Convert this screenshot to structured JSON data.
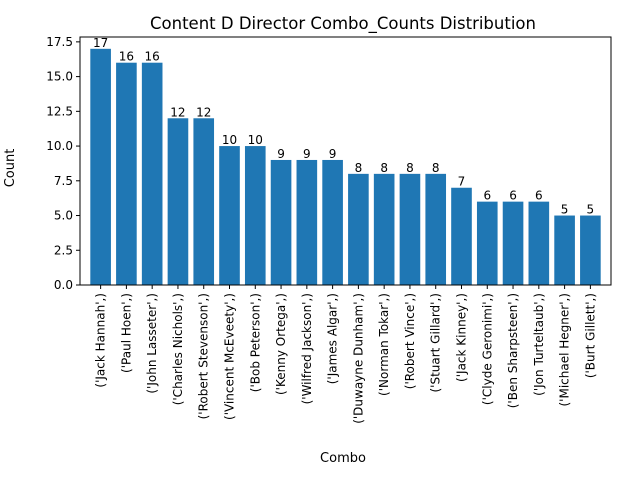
{
  "chart_data": {
    "type": "bar",
    "title": "Content D Director Combo_Counts Distribution",
    "xlabel": "Combo",
    "ylabel": "Count",
    "ylim": [
      0,
      17.85
    ],
    "yticks": [
      "0.0",
      "2.5",
      "5.0",
      "7.5",
      "10.0",
      "12.5",
      "15.0",
      "17.5"
    ],
    "ytick_values": [
      0,
      2.5,
      5,
      7.5,
      10,
      12.5,
      15,
      17.5
    ],
    "categories": [
      "('Jack Hannah',)",
      "('Paul Hoen',)",
      "('John Lasseter',)",
      "('Charles Nichols',)",
      "('Robert Stevenson',)",
      "('Vincent McEveety',)",
      "('Bob Peterson',)",
      "('Kenny Ortega',)",
      "('Wilfred Jackson',)",
      "('James Algar',)",
      "('Duwayne Dunham',)",
      "('Norman Tokar',)",
      "('Robert Vince',)",
      "('Stuart Gillard',)",
      "('Jack Kinney',)",
      "('Clyde Geronimi',)",
      "('Ben Sharpsteen',)",
      "('Jon Turteltaub',)",
      "('Michael Hegner',)",
      "('Burt Gillett',)"
    ],
    "values": [
      17,
      16,
      16,
      12,
      12,
      10,
      10,
      9,
      9,
      9,
      8,
      8,
      8,
      8,
      7,
      6,
      6,
      6,
      5,
      5
    ],
    "bar_color": "#1f77b4",
    "grid": false,
    "legend": "none"
  }
}
